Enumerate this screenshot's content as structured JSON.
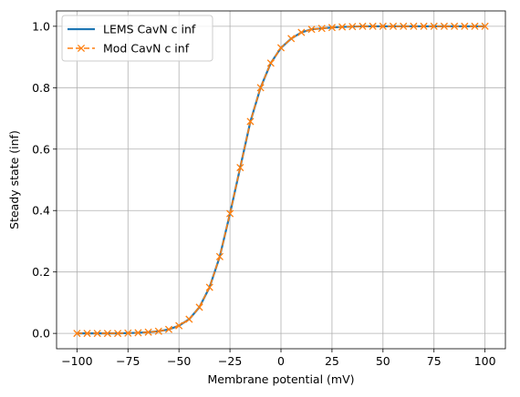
{
  "chart_data": {
    "type": "line",
    "title": "",
    "xlabel": "Membrane potential (mV)",
    "ylabel": "Steady state (inf)",
    "xlim": [
      -110,
      110
    ],
    "ylim": [
      -0.05,
      1.05
    ],
    "xticks": [
      -100,
      -75,
      -50,
      -25,
      0,
      25,
      50,
      75,
      100
    ],
    "xtick_labels": [
      "−100",
      "−75",
      "−50",
      "−25",
      "0",
      "25",
      "50",
      "75",
      "100"
    ],
    "yticks": [
      0.0,
      0.2,
      0.4,
      0.6,
      0.8,
      1.0
    ],
    "ytick_labels": [
      "0.0",
      "0.2",
      "0.4",
      "0.6",
      "0.8",
      "1.0"
    ],
    "grid": true,
    "legend_position": "top-left",
    "series": [
      {
        "name": "LEMS CavN c inf",
        "style": "solid",
        "color": "#1f77b4",
        "x": [
          -100,
          -95,
          -90,
          -85,
          -80,
          -75,
          -70,
          -65,
          -60,
          -55,
          -50,
          -45,
          -40,
          -35,
          -30,
          -25,
          -20,
          -15,
          -10,
          -5,
          0,
          5,
          10,
          15,
          20,
          25,
          30,
          35,
          40,
          45,
          50,
          55,
          60,
          65,
          70,
          75,
          80,
          85,
          90,
          95,
          100
        ],
        "values": [
          0.0,
          0.0,
          0.0,
          0.0,
          0.0,
          0.001,
          0.002,
          0.004,
          0.007,
          0.013,
          0.025,
          0.046,
          0.085,
          0.15,
          0.25,
          0.39,
          0.54,
          0.69,
          0.8,
          0.88,
          0.93,
          0.96,
          0.98,
          0.99,
          0.993,
          0.996,
          0.998,
          0.999,
          1.0,
          1.0,
          1.0,
          1.0,
          1.0,
          1.0,
          1.0,
          1.0,
          1.0,
          1.0,
          1.0,
          1.0,
          1.0
        ]
      },
      {
        "name": "Mod CavN c inf",
        "style": "dashed",
        "marker": "x",
        "color": "#ff7f0e",
        "x": [
          -100,
          -95,
          -90,
          -85,
          -80,
          -75,
          -70,
          -65,
          -60,
          -55,
          -50,
          -45,
          -40,
          -35,
          -30,
          -25,
          -20,
          -15,
          -10,
          -5,
          0,
          5,
          10,
          15,
          20,
          25,
          30,
          35,
          40,
          45,
          50,
          55,
          60,
          65,
          70,
          75,
          80,
          85,
          90,
          95,
          100
        ],
        "values": [
          0.0,
          0.0,
          0.0,
          0.0,
          0.0,
          0.001,
          0.002,
          0.004,
          0.007,
          0.013,
          0.025,
          0.046,
          0.085,
          0.15,
          0.25,
          0.39,
          0.54,
          0.69,
          0.8,
          0.88,
          0.93,
          0.96,
          0.98,
          0.99,
          0.993,
          0.996,
          0.998,
          0.999,
          1.0,
          1.0,
          1.0,
          1.0,
          1.0,
          1.0,
          1.0,
          1.0,
          1.0,
          1.0,
          1.0,
          1.0,
          1.0
        ]
      }
    ]
  }
}
